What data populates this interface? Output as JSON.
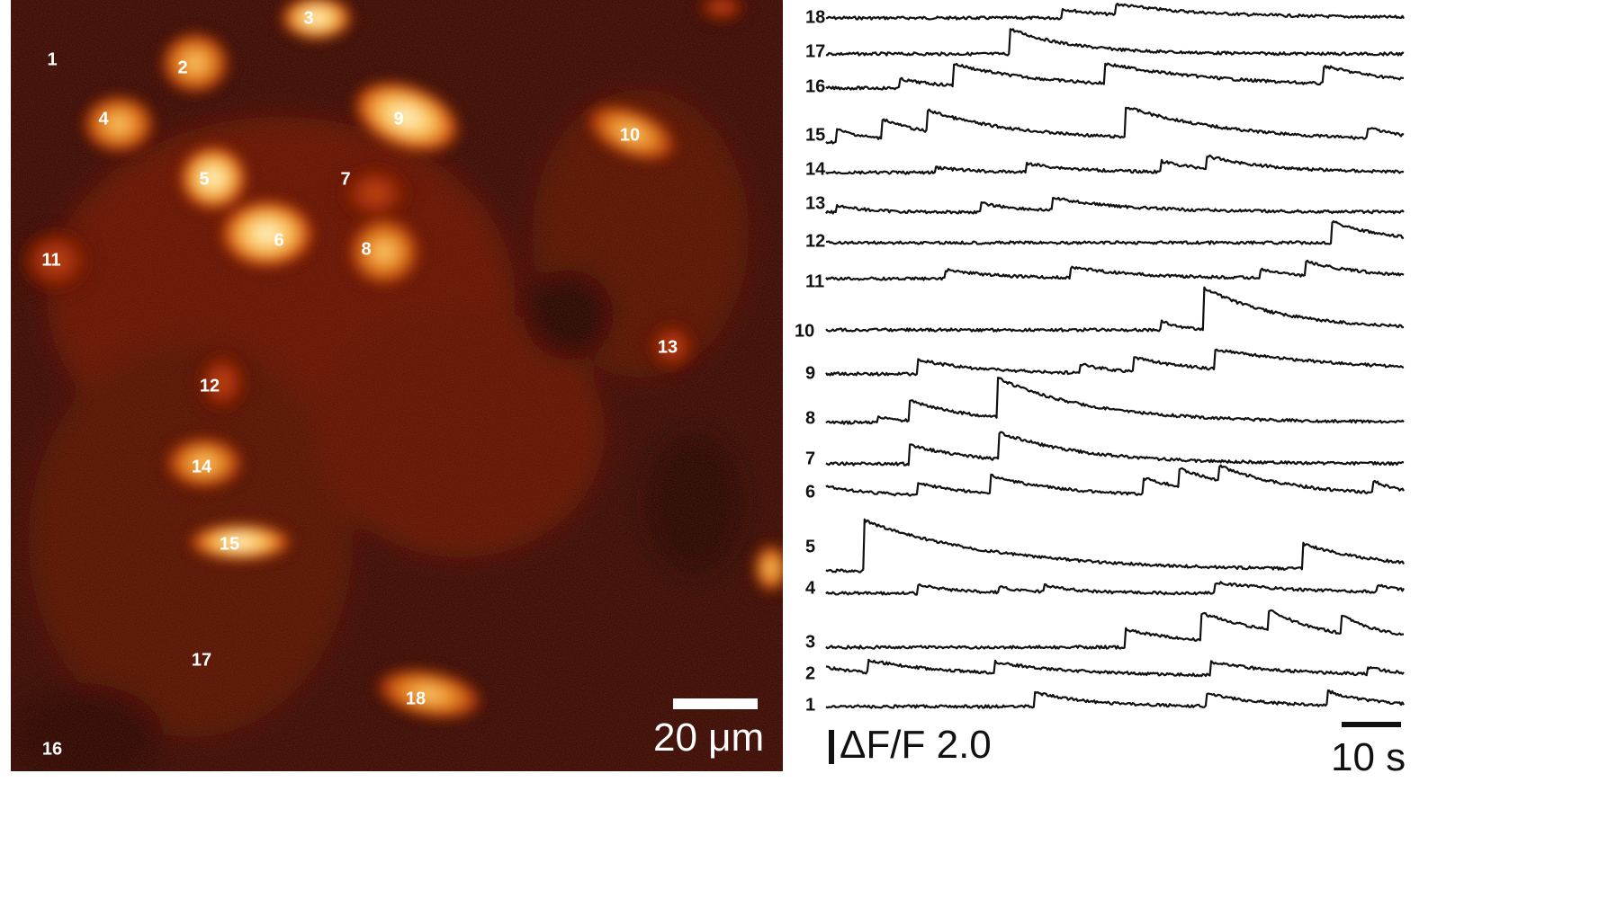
{
  "image": {
    "cell_labels": [
      "1",
      "2",
      "3",
      "4",
      "5",
      "6",
      "7",
      "8",
      "9",
      "10",
      "11",
      "12",
      "13",
      "14",
      "15",
      "16",
      "17",
      "18"
    ],
    "scale_label": "20 μm",
    "colormap": [
      "#2a0503",
      "#8a1a06",
      "#d9570c",
      "#f6a640",
      "#fff6c8"
    ]
  },
  "traces": {
    "labels": [
      "18",
      "17",
      "16",
      "15",
      "14",
      "13",
      "12",
      "11",
      "10",
      "9",
      "8",
      "7",
      "6",
      "5",
      "4",
      "3",
      "2",
      "1"
    ],
    "dff_label": "ΔF/F 2.0",
    "time_label": "10 s",
    "color": "#111111"
  }
}
